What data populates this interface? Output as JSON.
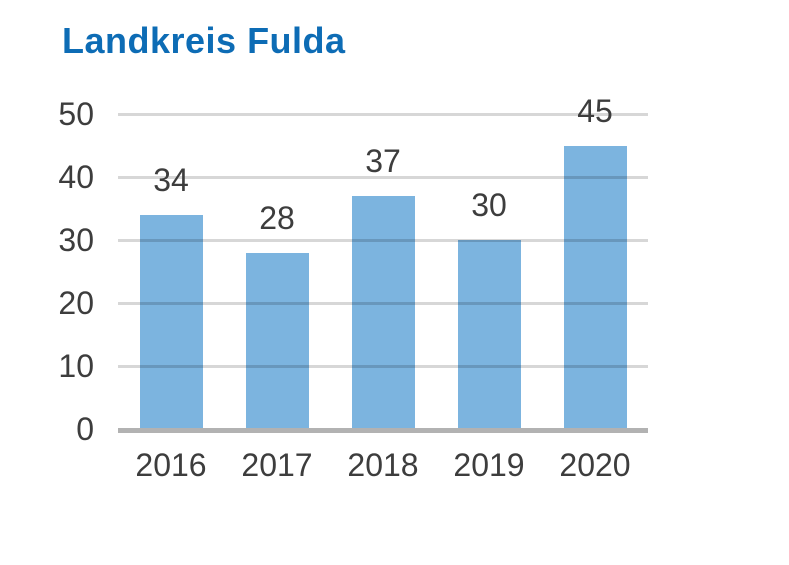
{
  "title": "Landkreis Fulda",
  "chart_data": {
    "type": "bar",
    "title": "Landkreis Fulda",
    "categories": [
      "2016",
      "2017",
      "2018",
      "2019",
      "2020"
    ],
    "values": [
      34,
      28,
      37,
      30,
      45
    ],
    "xlabel": "",
    "ylabel": "",
    "ylim": [
      0,
      50
    ],
    "y_ticks": [
      0,
      10,
      20,
      30,
      40,
      50
    ],
    "grid": true,
    "legend_position": "none",
    "data_labels": true
  },
  "colors": {
    "title": "#0d6cb5",
    "bar": "#7cb4df",
    "gridline": "#d8d8d8",
    "baseline": "#b2b2b2",
    "text": "#3d3d3d",
    "background": "#ffffff"
  }
}
